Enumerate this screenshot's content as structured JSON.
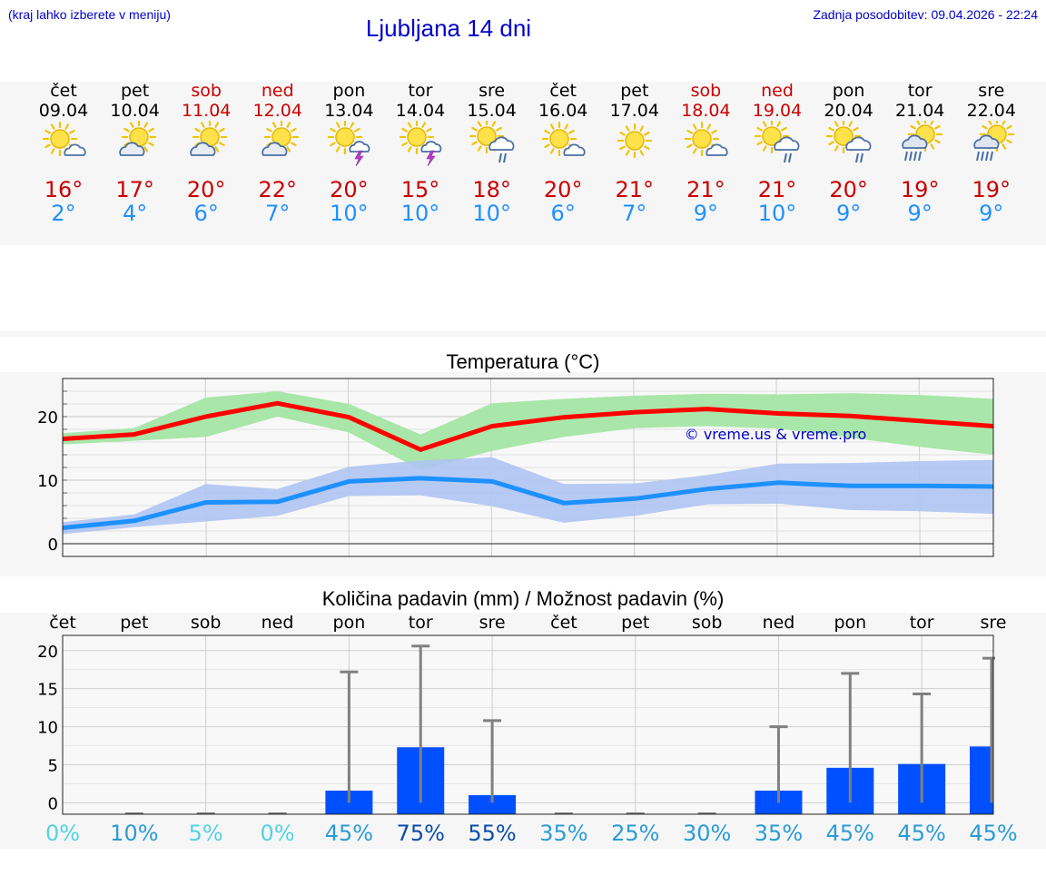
{
  "header": {
    "location_hint": "(kraj lahko izberete v meniju)",
    "title": "Ljubljana 14 dni",
    "last_update": "Zadnja posodobitev: 09.04.2026 - 22:24"
  },
  "colors": {
    "title_blue": "#0000cc",
    "weekend_red": "#cc0000",
    "tmax_red": "#cc0000",
    "tmin_blue": "#1e90ff",
    "max_line": "#ff0000",
    "max_band": "#a9e6a9",
    "min_line": "#1e90ff",
    "min_band": "#aec4f2",
    "precip_bar": "#0050ff",
    "error_bar": "#808080"
  },
  "days": [
    {
      "name": "čet",
      "date": "09.04",
      "tmax": "16°",
      "tmin": "2°",
      "weekend": false,
      "icon": "sun-cloud-icon"
    },
    {
      "name": "pet",
      "date": "10.04",
      "tmax": "17°",
      "tmin": "4°",
      "weekend": false,
      "icon": "cloud-sun-icon"
    },
    {
      "name": "sob",
      "date": "11.04",
      "tmax": "20°",
      "tmin": "6°",
      "weekend": true,
      "icon": "cloud-sun-icon"
    },
    {
      "name": "ned",
      "date": "12.04",
      "tmax": "22°",
      "tmin": "7°",
      "weekend": true,
      "icon": "cloud-sun-icon"
    },
    {
      "name": "pon",
      "date": "13.04",
      "tmax": "20°",
      "tmin": "10°",
      "weekend": false,
      "icon": "sun-thunder-icon"
    },
    {
      "name": "tor",
      "date": "14.04",
      "tmax": "15°",
      "tmin": "10°",
      "weekend": false,
      "icon": "sun-thunder-icon"
    },
    {
      "name": "sre",
      "date": "15.04",
      "tmax": "18°",
      "tmin": "10°",
      "weekend": false,
      "icon": "sun-rain-icon"
    },
    {
      "name": "čet",
      "date": "16.04",
      "tmax": "20°",
      "tmin": "6°",
      "weekend": false,
      "icon": "sun-cloud-icon"
    },
    {
      "name": "pet",
      "date": "17.04",
      "tmax": "21°",
      "tmin": "7°",
      "weekend": false,
      "icon": "sun-icon"
    },
    {
      "name": "sob",
      "date": "18.04",
      "tmax": "21°",
      "tmin": "9°",
      "weekend": true,
      "icon": "sun-cloud-icon"
    },
    {
      "name": "ned",
      "date": "19.04",
      "tmax": "21°",
      "tmin": "10°",
      "weekend": true,
      "icon": "sun-rain-icon"
    },
    {
      "name": "pon",
      "date": "20.04",
      "tmax": "20°",
      "tmin": "9°",
      "weekend": false,
      "icon": "sun-rain-icon"
    },
    {
      "name": "tor",
      "date": "21.04",
      "tmax": "19°",
      "tmin": "9°",
      "weekend": false,
      "icon": "cloud-rain-icon"
    },
    {
      "name": "sre",
      "date": "22.04",
      "tmax": "19°",
      "tmin": "9°",
      "weekend": false,
      "icon": "cloud-rain-icon"
    }
  ],
  "chart_data": [
    {
      "type": "line",
      "title": "Temperatura (°C)",
      "watermark": "© vreme.us & vreme.pro",
      "x": [
        0,
        1,
        2,
        3,
        4,
        5,
        6,
        7,
        8,
        9,
        10,
        11,
        12,
        13
      ],
      "ylim": [
        -2,
        26
      ],
      "yticks": [
        0,
        10,
        20
      ],
      "grid": true,
      "series": [
        {
          "values": [
            16.5,
            17.2,
            20.0,
            22.1,
            19.9,
            14.8,
            18.5,
            19.9,
            20.7,
            21.2,
            20.5,
            20.1,
            19.3,
            18.5
          ]
        },
        {
          "values": [
            2.5,
            3.6,
            6.5,
            6.6,
            9.8,
            10.3,
            9.8,
            6.4,
            7.1,
            8.6,
            9.6,
            9.1,
            9.1,
            9.0
          ]
        }
      ],
      "bands": [
        {
          "upper": [
            17.4,
            18.2,
            23.0,
            24.0,
            22.0,
            17.2,
            22.1,
            22.8,
            23.3,
            23.6,
            23.5,
            23.7,
            23.4,
            22.8
          ],
          "lower": [
            15.6,
            16.2,
            16.8,
            20.0,
            17.5,
            11.6,
            14.6,
            16.8,
            18.2,
            18.5,
            18.1,
            16.7,
            15.2,
            14.0
          ]
        },
        {
          "upper": [
            3.4,
            4.6,
            9.4,
            8.6,
            12.1,
            13.1,
            13.6,
            9.4,
            9.5,
            10.8,
            12.6,
            12.7,
            13.0,
            13.2
          ],
          "lower": [
            1.5,
            2.6,
            3.5,
            4.4,
            7.5,
            7.6,
            5.9,
            3.3,
            4.4,
            6.2,
            6.3,
            5.3,
            5.1,
            4.7
          ]
        }
      ]
    },
    {
      "type": "bar",
      "title": "Količina padavin (mm) / Možnost padavin (%)",
      "categories": [
        "čet",
        "pet",
        "sob",
        "ned",
        "pon",
        "tor",
        "sre",
        "čet",
        "pet",
        "sob",
        "ned",
        "pon",
        "tor",
        "sre"
      ],
      "values": [
        0,
        0,
        0,
        0,
        1.6,
        7.3,
        1.0,
        0,
        0,
        0,
        1.6,
        4.6,
        5.1,
        7.4
      ],
      "error_max": [
        0,
        0,
        0,
        0,
        17.2,
        20.6,
        10.8,
        0,
        0,
        0,
        10.0,
        17.0,
        14.3,
        19.0
      ],
      "probability": [
        "0%",
        "10%",
        "5%",
        "0%",
        "45%",
        "75%",
        "55%",
        "35%",
        "25%",
        "30%",
        "35%",
        "45%",
        "45%",
        "45%"
      ],
      "probability_colors": [
        "#52d3e3",
        "#2a9cd6",
        "#52d3e3",
        "#52d3e3",
        "#2a9cd6",
        "#0a4da8",
        "#0a4da8",
        "#2a9cd6",
        "#2a9cd6",
        "#2a9cd6",
        "#2a9cd6",
        "#2a9cd6",
        "#2a9cd6",
        "#2a9cd6"
      ],
      "ylim": [
        -1.5,
        22
      ],
      "yticks": [
        0,
        5,
        10,
        15,
        20
      ],
      "grid": true
    }
  ]
}
